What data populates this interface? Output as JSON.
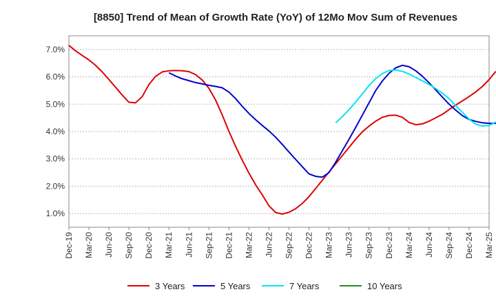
{
  "chart_data": {
    "type": "line",
    "title": "[8850]  Trend of Mean of Growth Rate (YoY) of 12Mo Mov Sum of Revenues",
    "xlabel": "",
    "ylabel": "",
    "ylim": [
      0.5,
      7.5
    ],
    "y_ticks": [
      "1.0%",
      "2.0%",
      "3.0%",
      "4.0%",
      "5.0%",
      "6.0%",
      "7.0%"
    ],
    "x_ticks": [
      "Dec-19",
      "Mar-20",
      "Jun-20",
      "Sep-20",
      "Dec-20",
      "Mar-21",
      "Jun-21",
      "Sep-21",
      "Dec-21",
      "Mar-22",
      "Jun-22",
      "Sep-22",
      "Dec-22",
      "Mar-23",
      "Jun-23",
      "Sep-23",
      "Dec-23",
      "Mar-24",
      "Jun-24",
      "Sep-24",
      "Dec-24",
      "Mar-25"
    ],
    "x_start_label": "Dec-19",
    "series": [
      {
        "name": "3 Years",
        "color": "#dd0000",
        "start_index": 0,
        "values": [
          7.15,
          6.95,
          6.78,
          6.62,
          6.42,
          6.18,
          5.9,
          5.62,
          5.33,
          5.07,
          5.05,
          5.28,
          5.72,
          6.02,
          6.18,
          6.22,
          6.23,
          6.22,
          6.19,
          6.08,
          5.88,
          5.58,
          5.15,
          4.6,
          4.0,
          3.45,
          2.95,
          2.48,
          2.05,
          1.68,
          1.28,
          1.04,
          0.98,
          1.05,
          1.18,
          1.37,
          1.62,
          1.92,
          2.22,
          2.52,
          2.82,
          3.12,
          3.42,
          3.72,
          3.99,
          4.2,
          4.38,
          4.52,
          4.59,
          4.6,
          4.52,
          4.33,
          4.25,
          4.28,
          4.38,
          4.5,
          4.63,
          4.8,
          4.97,
          5.12,
          5.28,
          5.45,
          5.65,
          5.9,
          6.2
        ]
      },
      {
        "name": "5 Years",
        "color": "#0000cc",
        "start_index": 15,
        "values": [
          6.15,
          6.03,
          5.93,
          5.86,
          5.79,
          5.74,
          5.69,
          5.65,
          5.6,
          5.44,
          5.2,
          4.92,
          4.66,
          4.43,
          4.22,
          4.02,
          3.79,
          3.53,
          3.25,
          2.98,
          2.71,
          2.45,
          2.36,
          2.33,
          2.5,
          2.88,
          3.3,
          3.72,
          4.15,
          4.6,
          5.05,
          5.5,
          5.85,
          6.13,
          6.33,
          6.42,
          6.37,
          6.22,
          6.02,
          5.78,
          5.52,
          5.26,
          5.0,
          4.78,
          4.58,
          4.44,
          4.37,
          4.32,
          4.3,
          4.3,
          4.32
        ]
      },
      {
        "name": "7 Years",
        "color": "#00e5ee",
        "start_index": 40,
        "values": [
          4.32,
          4.55,
          4.8,
          5.08,
          5.38,
          5.68,
          5.94,
          6.12,
          6.23,
          6.25,
          6.2,
          6.1,
          5.98,
          5.85,
          5.72,
          5.57,
          5.4,
          5.2,
          4.95,
          4.7,
          4.45,
          4.27,
          4.2,
          4.22,
          4.35
        ]
      },
      {
        "name": "10 Years",
        "color": "#228b22",
        "start_index": 0,
        "values": []
      }
    ],
    "legend": [
      "3 Years",
      "5 Years",
      "7 Years",
      "10 Years"
    ],
    "legend_position": "bottom-center",
    "grid": true
  }
}
